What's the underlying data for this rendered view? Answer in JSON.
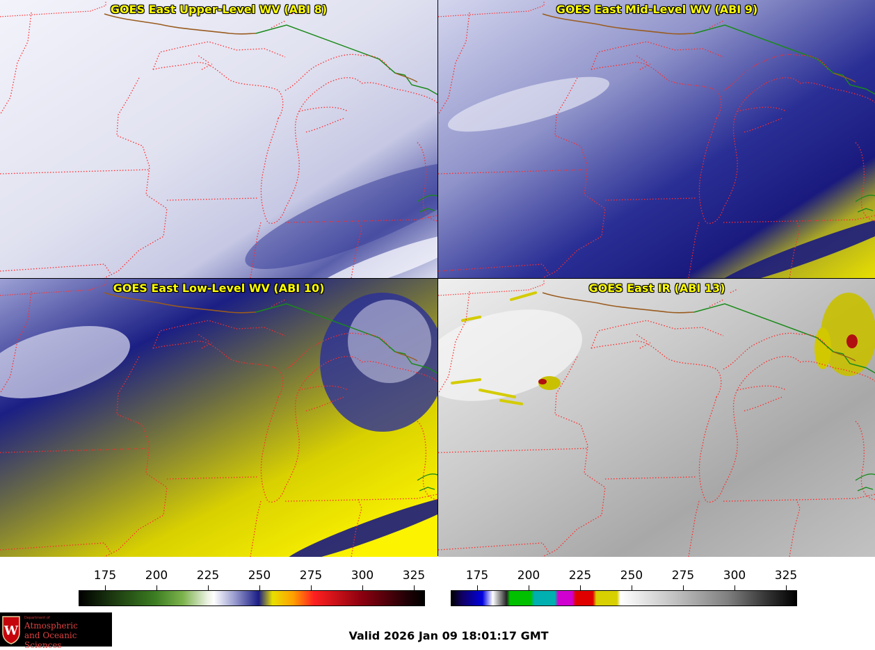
{
  "panels": [
    {
      "title": "GOES East Upper-Level WV (ABI 8)"
    },
    {
      "title": "GOES East Mid-Level WV (ABI 9)"
    },
    {
      "title": "GOES East Low-Level WV (ABI 10)"
    },
    {
      "title": "GOES East IR (ABI 13)"
    }
  ],
  "colorbars": [
    {
      "ticks": [
        "175",
        "200",
        "225",
        "250",
        "275",
        "300",
        "325"
      ]
    },
    {
      "ticks": [
        "175",
        "200",
        "225",
        "250",
        "275",
        "300",
        "325"
      ]
    }
  ],
  "logo": {
    "small": "Department of",
    "line1": "Atmospheric",
    "line2": "and Oceanic Sciences"
  },
  "valid_time": "Valid 2026 Jan 09 18:01:17 GMT",
  "colors": {
    "state_border": "#ff2a2a",
    "country_border": "#1a8a1a",
    "title_text": "#ffff00"
  }
}
